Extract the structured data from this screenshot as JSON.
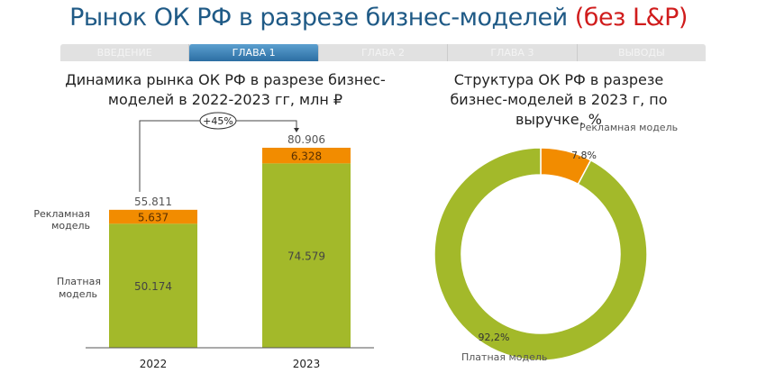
{
  "header": {
    "title": "Рынок ОК РФ в разрезе бизнес-моделей",
    "title_highlight": "(без L&P)"
  },
  "tabs": [
    {
      "label": "ВВЕДЕНИЕ"
    },
    {
      "label": "ГЛАВА 1",
      "active": true
    },
    {
      "label": "ГЛАВА 2"
    },
    {
      "label": "ГЛАВА 3"
    },
    {
      "label": "ВЫВОДЫ"
    }
  ],
  "colors": {
    "paid": "#a3b92a",
    "ad": "#f28c00"
  },
  "chart_data": [
    {
      "type": "bar",
      "stacked": true,
      "title": "Динамика рынка ОК РФ в разрезе бизнес-моделей в 2022-2023 гг, млн ₽",
      "categories": [
        "2022",
        "2023"
      ],
      "series": [
        {
          "name": "Платная модель",
          "values": [
            50.174,
            74.579
          ],
          "labels": [
            "50.174",
            "74.579"
          ]
        },
        {
          "name": "Рекламная модель",
          "values": [
            5.637,
            6.328
          ],
          "labels": [
            "5.637",
            "6.328"
          ]
        }
      ],
      "totals": [
        "55.811",
        "80.906"
      ],
      "growth": "+45%",
      "legend_paid": "Платная модель",
      "legend_ad": "Рекламная модель"
    },
    {
      "type": "pie",
      "donut": true,
      "title": "Структура ОК РФ в разрезе бизнес-моделей в 2023 г, по выручке, %",
      "categories": [
        "Рекламная модель",
        "Платная модель"
      ],
      "values": [
        7.8,
        92.2
      ],
      "labels": [
        "7.8%",
        "92,2%"
      ]
    }
  ]
}
